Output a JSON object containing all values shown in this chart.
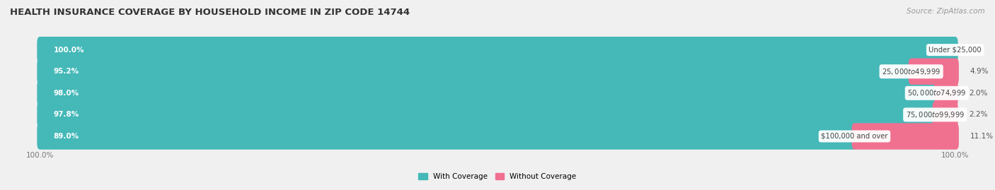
{
  "title": "HEALTH INSURANCE COVERAGE BY HOUSEHOLD INCOME IN ZIP CODE 14744",
  "source": "Source: ZipAtlas.com",
  "categories": [
    "Under $25,000",
    "$25,000 to $49,999",
    "$50,000 to $74,999",
    "$75,000 to $99,999",
    "$100,000 and over"
  ],
  "with_coverage": [
    100.0,
    95.2,
    98.0,
    97.8,
    89.0
  ],
  "without_coverage": [
    0.0,
    4.9,
    2.0,
    2.2,
    11.1
  ],
  "color_coverage": "#45b8b8",
  "color_without": "#f07090",
  "background": "#f0f0f0",
  "bar_bg": "#e0e0e0",
  "bar_height": 0.62,
  "title_fontsize": 9.5,
  "bar_label_fontsize": 7.5,
  "cat_label_fontsize": 7.2,
  "tick_fontsize": 7.5,
  "source_fontsize": 7.5,
  "legend_fontsize": 7.5
}
